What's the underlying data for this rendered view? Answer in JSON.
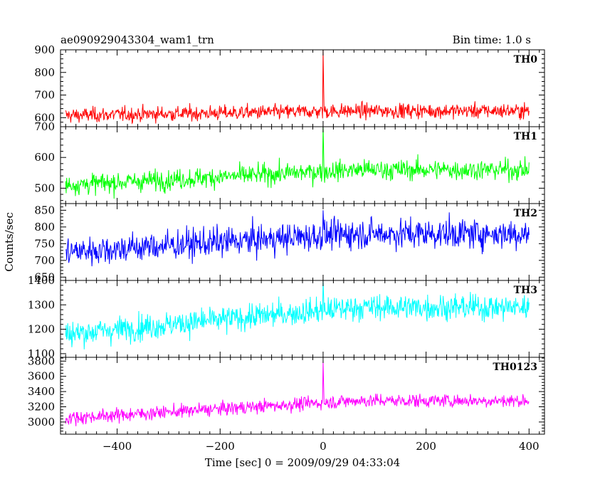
{
  "chart_data": {
    "type": "line",
    "title_left": "ae090929043304_wam1_trn",
    "title_right": "Bin time: 1.0 s",
    "xlabel": "Time [sec] 0 = 2009/09/29 04:33:04",
    "ylabel": "Counts/sec",
    "xlim": [
      -510,
      430
    ],
    "x_ticks": [
      -400,
      -200,
      0,
      200,
      400
    ],
    "x_range": [
      -500,
      400
    ],
    "burst_time": 0,
    "grid": false,
    "panels": [
      {
        "name": "TH0",
        "color": "#ff0000",
        "ylim": [
          560,
          900
        ],
        "y_ticks": [
          600,
          700,
          800,
          900
        ],
        "baseline_start": 610,
        "baseline_end": 630,
        "noise": 28,
        "peak": 900
      },
      {
        "name": "TH1",
        "color": "#00ff00",
        "ylim": [
          450,
          700
        ],
        "y_ticks": [
          500,
          600,
          700
        ],
        "baseline_start": 510,
        "baseline_end": 560,
        "noise": 28,
        "peak": 705
      },
      {
        "name": "TH2",
        "color": "#0000ff",
        "ylim": [
          640,
          870
        ],
        "y_ticks": [
          650,
          700,
          750,
          800,
          850
        ],
        "baseline_start": 725,
        "baseline_end": 780,
        "noise": 38,
        "peak": 850
      },
      {
        "name": "TH3",
        "color": "#00ffff",
        "ylim": [
          1085,
          1400
        ],
        "y_ticks": [
          1100,
          1200,
          1300,
          1400
        ],
        "baseline_start": 1180,
        "baseline_end": 1290,
        "noise": 45,
        "peak": 1400
      },
      {
        "name": "TH0123",
        "color": "#ff00ff",
        "ylim": [
          2840,
          3850
        ],
        "y_ticks": [
          3000,
          3200,
          3400,
          3600,
          3800
        ],
        "baseline_start": 3050,
        "baseline_end": 3280,
        "noise": 75,
        "peak": 3800
      }
    ]
  }
}
